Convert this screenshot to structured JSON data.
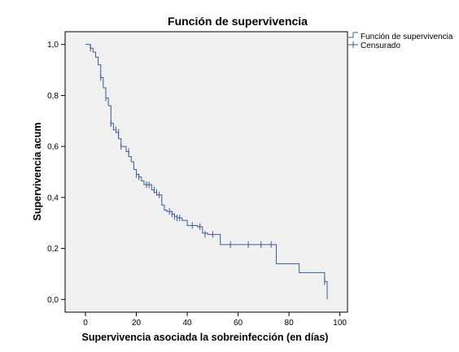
{
  "chart_data": {
    "type": "line",
    "title": "Función de supervivencia",
    "xlabel": "Supervivencia asociada la sobreinfección (en días)",
    "ylabel": "Supervivencia acum",
    "xlim": [
      -8,
      103
    ],
    "ylim": [
      -0.05,
      1.05
    ],
    "x_ticks": [
      0,
      20,
      40,
      60,
      80,
      100
    ],
    "x_tick_labels": [
      "0",
      "20",
      "40",
      "60",
      "80",
      "100"
    ],
    "y_ticks": [
      0.0,
      0.2,
      0.4,
      0.6,
      0.8,
      1.0
    ],
    "y_tick_labels": [
      "0,0",
      "0,2",
      "0,4",
      "0,6",
      "0,8",
      "1,0"
    ],
    "grid": false,
    "legend_position": "top-right-outside",
    "colors": {
      "line": "#3a5a96",
      "plot_background": "#f0f0f0",
      "frame": "#000000"
    },
    "series": [
      {
        "name": "Función de supervivencia",
        "kind": "step",
        "x": [
          0,
          1,
          2,
          3,
          4,
          5,
          6,
          7,
          8,
          9,
          10,
          11,
          12,
          13,
          14,
          16,
          17,
          18,
          19,
          20,
          21,
          22,
          23,
          26,
          27,
          28,
          30,
          31,
          32,
          34,
          35,
          36,
          38,
          40,
          44,
          46,
          48,
          53,
          75,
          84,
          94,
          95
        ],
        "y": [
          1.0,
          1.0,
          0.985,
          0.97,
          0.95,
          0.92,
          0.87,
          0.83,
          0.79,
          0.76,
          0.69,
          0.665,
          0.655,
          0.63,
          0.6,
          0.58,
          0.56,
          0.54,
          0.51,
          0.49,
          0.48,
          0.465,
          0.45,
          0.43,
          0.42,
          0.41,
          0.37,
          0.35,
          0.345,
          0.335,
          0.325,
          0.32,
          0.31,
          0.29,
          0.285,
          0.26,
          0.255,
          0.215,
          0.14,
          0.105,
          0.07,
          0.0
        ]
      },
      {
        "name": "Censurado",
        "kind": "censor",
        "x": [
          2,
          6,
          8,
          10,
          12,
          13,
          14,
          17,
          20,
          21,
          24,
          25,
          27,
          28,
          29,
          33,
          34,
          35,
          36,
          37,
          42,
          45,
          47,
          50,
          57,
          64,
          69,
          73,
          94
        ],
        "y": [
          0.985,
          0.87,
          0.79,
          0.69,
          0.665,
          0.655,
          0.6,
          0.58,
          0.49,
          0.48,
          0.45,
          0.45,
          0.43,
          0.42,
          0.41,
          0.345,
          0.335,
          0.325,
          0.32,
          0.32,
          0.29,
          0.285,
          0.255,
          0.255,
          0.215,
          0.215,
          0.215,
          0.215,
          0.07
        ]
      }
    ]
  }
}
